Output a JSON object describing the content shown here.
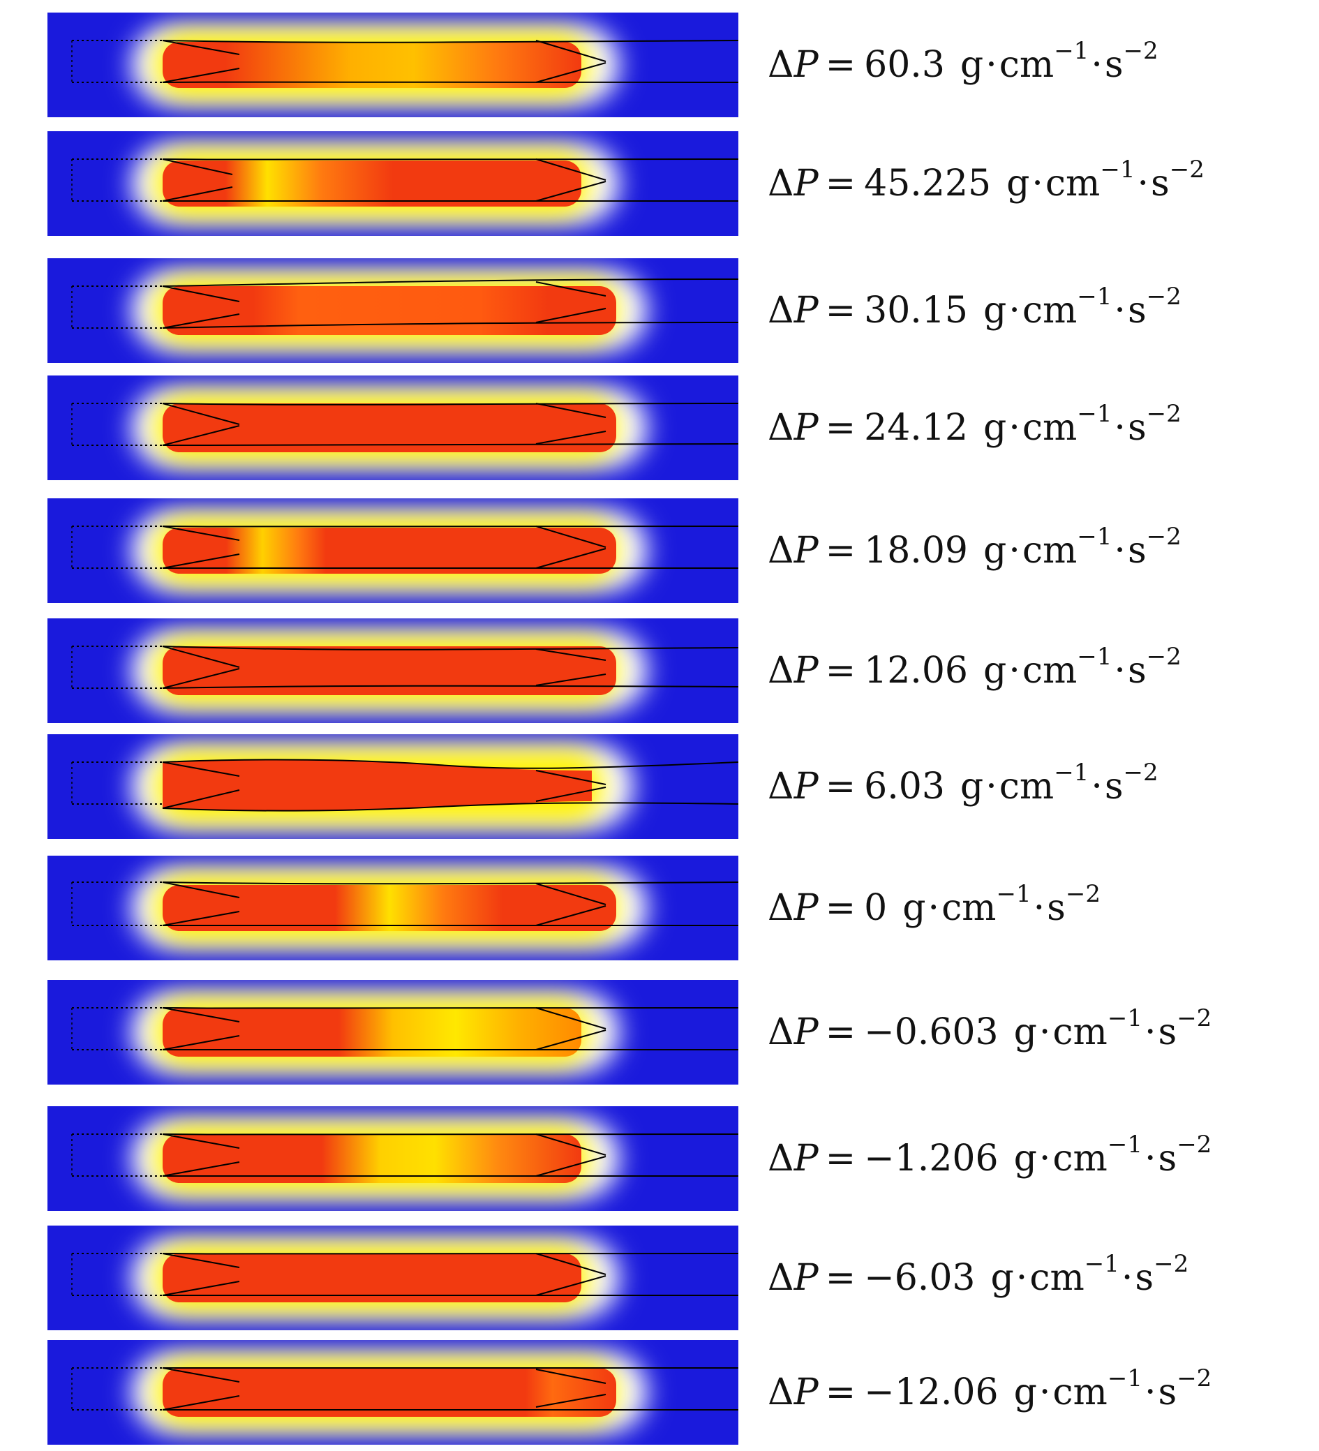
{
  "colors": {
    "blue": "#1a1adc",
    "white": "#ffffff",
    "yellow": "#fff200",
    "orange": "#ff9900",
    "red": "#f23a10",
    "outline": "#000000"
  },
  "units": {
    "g": "g",
    "cm": "cm",
    "cm_exp": "−1",
    "s": "s",
    "s_exp": "−2"
  },
  "rows": [
    {
      "delta": "Δ",
      "var": "P",
      "eq": "=",
      "value": "60.3"
    },
    {
      "delta": "Δ",
      "var": "P",
      "eq": "=",
      "value": "45.225"
    },
    {
      "delta": "Δ",
      "var": "P",
      "eq": "=",
      "value": "30.15"
    },
    {
      "delta": "Δ",
      "var": "P",
      "eq": "=",
      "value": "24.12"
    },
    {
      "delta": "Δ",
      "var": "P",
      "eq": "=",
      "value": "18.09"
    },
    {
      "delta": "Δ",
      "var": "P",
      "eq": "=",
      "value": "12.06"
    },
    {
      "delta": "Δ",
      "var": "P",
      "eq": "=",
      "value": "6.03"
    },
    {
      "delta": "Δ",
      "var": "P",
      "eq": "=",
      "value": "0"
    },
    {
      "delta": "Δ",
      "var": "P",
      "eq": "=",
      "value": "−0.603"
    },
    {
      "delta": "Δ",
      "var": "P",
      "eq": "=",
      "value": "−1.206"
    },
    {
      "delta": "Δ",
      "var": "P",
      "eq": "=",
      "value": "−6.03"
    },
    {
      "delta": "Δ",
      "var": "P",
      "eq": "=",
      "value": "−12.06"
    }
  ]
}
